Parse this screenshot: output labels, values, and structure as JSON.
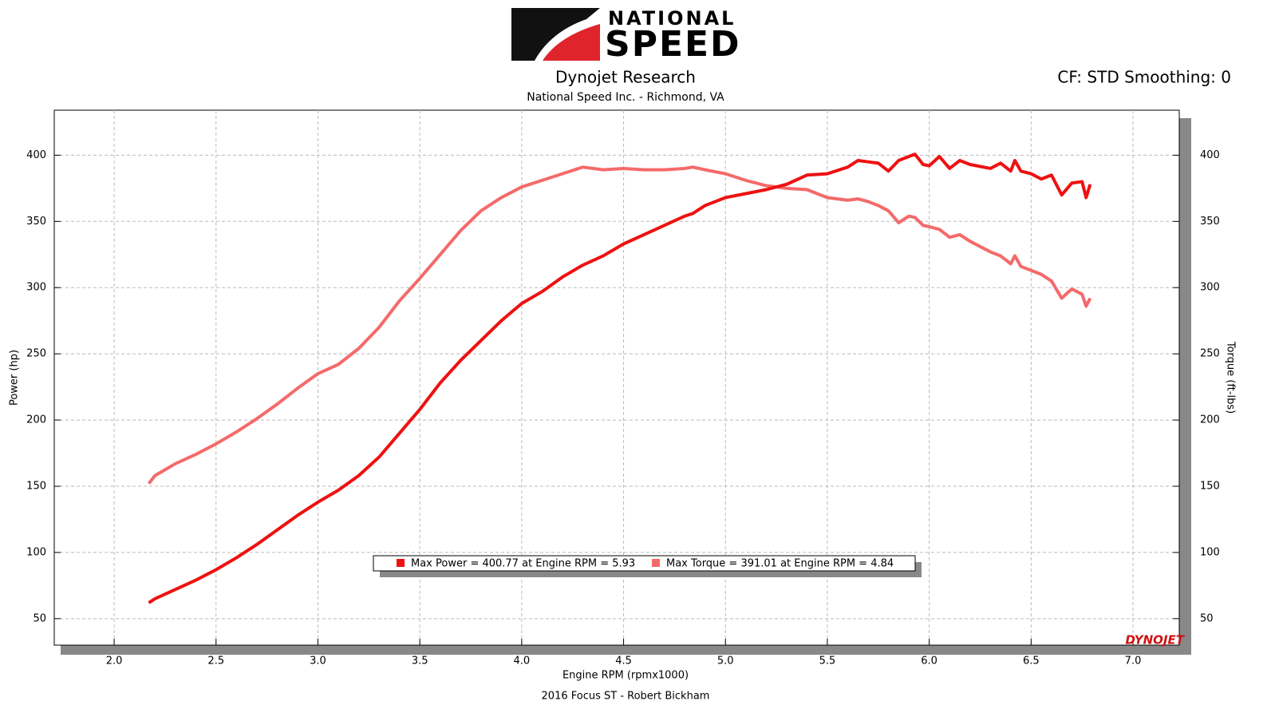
{
  "branding": {
    "logo_top": "NATIONAL",
    "logo_bottom": "SPEED",
    "watermark": "DYNOJET"
  },
  "chart_data": {
    "type": "line",
    "title": "Dynojet Research",
    "subtitle": "National Speed Inc. - Richmond, VA",
    "annotation": "CF: STD Smoothing: 0",
    "footer": "2016 Focus ST - Robert Bickham",
    "x_label": "Engine RPM (rpmx1000)",
    "y_label": "Power (hp)",
    "y2_label": "Torque (ft-lbs)",
    "x": [
      2.17,
      2.2,
      2.3,
      2.4,
      2.5,
      2.6,
      2.7,
      2.8,
      2.9,
      3.0,
      3.1,
      3.2,
      3.3,
      3.4,
      3.5,
      3.6,
      3.7,
      3.8,
      3.9,
      4.0,
      4.1,
      4.2,
      4.3,
      4.4,
      4.5,
      4.6,
      4.7,
      4.8,
      4.84,
      4.9,
      5.0,
      5.1,
      5.2,
      5.3,
      5.4,
      5.5,
      5.6,
      5.65,
      5.7,
      5.75,
      5.8,
      5.85,
      5.9,
      5.93,
      5.97,
      6.0,
      6.05,
      6.1,
      6.15,
      6.2,
      6.3,
      6.35,
      6.4,
      6.42,
      6.45,
      6.5,
      6.55,
      6.6,
      6.65,
      6.7,
      6.75,
      6.77,
      6.79
    ],
    "series": [
      {
        "name": "Max Power = 400.77 at Engine RPM = 5.93",
        "color": "#ee1111",
        "values": [
          62,
          65,
          72,
          79,
          87,
          96,
          106,
          117,
          128,
          138,
          147,
          158,
          172,
          190,
          208,
          228,
          245,
          260,
          275,
          288,
          297,
          308,
          317,
          324,
          333,
          340,
          347,
          354,
          356,
          362,
          368,
          371,
          374,
          378,
          385,
          386,
          391,
          396,
          395,
          394,
          388,
          396,
          399,
          400.77,
          393,
          392,
          399,
          390,
          396,
          393,
          390,
          394,
          388,
          396,
          388,
          386,
          382,
          385,
          370,
          379,
          380,
          368,
          378
        ]
      },
      {
        "name": "Max Torque = 391.01 at Engine RPM = 4.84",
        "color": "#f46a6a",
        "axis": "y2",
        "values": [
          152,
          158,
          167,
          174,
          182,
          191,
          201,
          212,
          224,
          235,
          242,
          254,
          270,
          290,
          307,
          325,
          343,
          358,
          368,
          376,
          381,
          386,
          391,
          389,
          390,
          389,
          389,
          390,
          391.01,
          389,
          386,
          381,
          377,
          375,
          374,
          368,
          366,
          367,
          365,
          362,
          358,
          349,
          354,
          353,
          347,
          346,
          344,
          338,
          340,
          335,
          327,
          324,
          318,
          324,
          316,
          313,
          310,
          305,
          292,
          299,
          295,
          286,
          292
        ]
      }
    ],
    "xlim": [
      1.706,
      7.227
    ],
    "xticks": [
      {
        "value": 2,
        "label": "2.0"
      },
      2.5,
      {
        "value": 3,
        "label": "3.0"
      },
      3.5,
      {
        "value": 4,
        "label": "4.0"
      },
      4.5,
      {
        "value": 5,
        "label": "5.0"
      },
      5.5,
      {
        "value": 6,
        "label": "6.0"
      },
      6.5,
      {
        "value": 7,
        "label": "7.0"
      }
    ],
    "ylim": [
      30,
      434
    ],
    "yticks": [
      50,
      100,
      150,
      200,
      250,
      300,
      350,
      400
    ],
    "y2lim": [
      30,
      434
    ],
    "y2ticks": [
      50,
      100,
      150,
      200,
      250,
      300,
      350,
      400
    ],
    "grid": true
  }
}
